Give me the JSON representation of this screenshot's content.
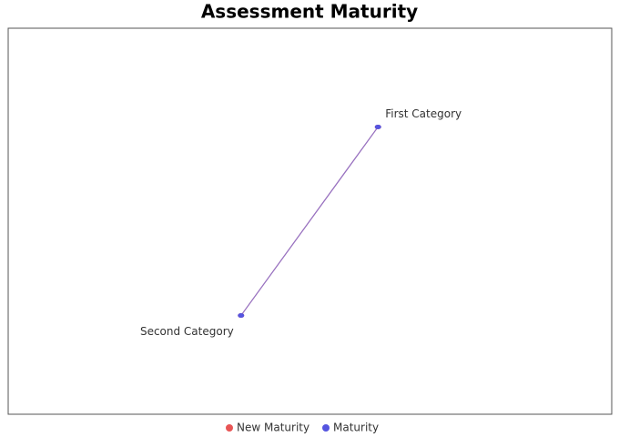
{
  "chart_data": {
    "type": "radar",
    "title": "Assessment Maturity",
    "categories": [
      "First Category",
      "Second Category"
    ],
    "series": [
      {
        "name": "New Maturity",
        "color": "#e85555",
        "values": [
          3.2,
          3.2
        ]
      },
      {
        "name": "Maturity",
        "color": "#5555e0",
        "values": [
          3.2,
          3.2
        ]
      }
    ],
    "rlim": [
      0,
      5
    ],
    "legend": "bottom"
  }
}
